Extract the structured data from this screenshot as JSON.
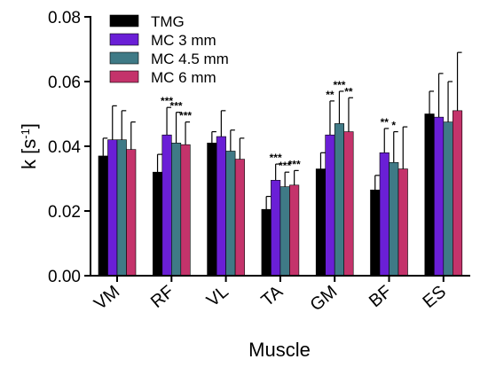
{
  "chart_data": {
    "type": "bar",
    "xlabel": "Muscle",
    "ylabel_main": "k [s",
    "ylabel_sup": "-1",
    "ylabel_end": "]",
    "ylim": [
      0,
      0.08
    ],
    "yticks": [
      "0.00",
      "0.02",
      "0.04",
      "0.06",
      "0.08"
    ],
    "categories": [
      "VM",
      "RF",
      "VL",
      "TA",
      "GM",
      "BF",
      "ES"
    ],
    "legend_position": "top-left",
    "series": [
      {
        "name": "TMG",
        "color": "#000000",
        "values": [
          0.037,
          0.032,
          0.041,
          0.0205,
          0.033,
          0.0265,
          0.05
        ],
        "errors": [
          0.0055,
          0.0055,
          0.0035,
          0.004,
          0.005,
          0.0045,
          0.007
        ],
        "significance": [
          "",
          "",
          "",
          "",
          "",
          "",
          ""
        ]
      },
      {
        "name": "MC 3 mm",
        "color": "#6a1fd6",
        "values": [
          0.042,
          0.0435,
          0.043,
          0.0295,
          0.0435,
          0.038,
          0.049
        ],
        "errors": [
          0.0105,
          0.0085,
          0.008,
          0.005,
          0.0105,
          0.0075,
          0.0135
        ],
        "significance": [
          "",
          "***",
          "",
          "***",
          "**",
          "**",
          ""
        ]
      },
      {
        "name": "MC 4.5 mm",
        "color": "#3f7a86",
        "values": [
          0.042,
          0.041,
          0.0385,
          0.0275,
          0.047,
          0.035,
          0.0475
        ],
        "errors": [
          0.009,
          0.0095,
          0.0065,
          0.0045,
          0.01,
          0.0095,
          0.0125
        ],
        "significance": [
          "",
          "***",
          "",
          "***",
          "***",
          "*",
          ""
        ]
      },
      {
        "name": "MC 6 mm",
        "color": "#c4336b",
        "values": [
          0.039,
          0.0405,
          0.036,
          0.028,
          0.0445,
          0.033,
          0.051
        ],
        "errors": [
          0.0085,
          0.007,
          0.0065,
          0.0045,
          0.0105,
          0.013,
          0.018
        ],
        "significance": [
          "",
          "***",
          "",
          "***",
          "**",
          "",
          ""
        ]
      }
    ]
  }
}
